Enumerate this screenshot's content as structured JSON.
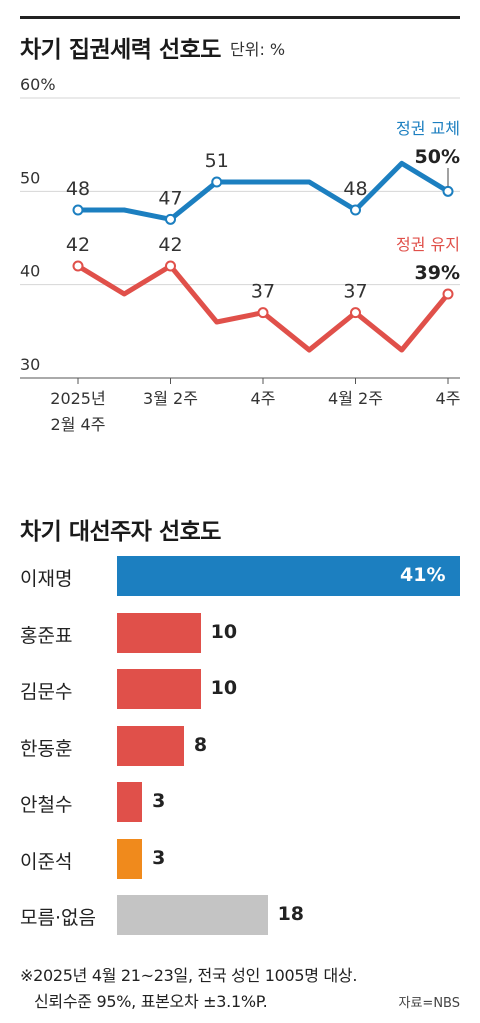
{
  "chart_data": [
    {
      "type": "line",
      "title": "차기 집권세력 선호도",
      "unit": "단위: %",
      "ylim": [
        30,
        60
      ],
      "y_ticks": [
        "60%",
        "50",
        "40",
        "30"
      ],
      "x_tick_labels": [
        "2025년\n2월 4주",
        "3월 2주",
        "4주",
        "4월 2주",
        "4주"
      ],
      "series": [
        {
          "name": "정권 교체",
          "color": "#1c7fc0",
          "values": [
            48,
            48,
            47,
            51,
            51,
            51,
            48,
            53,
            50
          ],
          "labels": [
            "48",
            "",
            "47",
            "51",
            "",
            "",
            "48",
            "",
            "50"
          ],
          "last_label": "50%"
        },
        {
          "name": "정권 유지",
          "color": "#e0504a",
          "values": [
            42,
            39,
            42,
            36,
            37,
            33,
            37,
            33,
            39
          ],
          "labels": [
            "42",
            "",
            "42",
            "",
            "37",
            "",
            "37",
            "",
            "39"
          ],
          "last_label": "39%"
        }
      ]
    },
    {
      "type": "bar",
      "title": "차기 대선주자 선호도",
      "categories": [
        "이재명",
        "홍준표",
        "김문수",
        "한동훈",
        "안철수",
        "이준석",
        "모름·없음"
      ],
      "values": [
        41,
        10,
        10,
        8,
        3,
        3,
        18
      ],
      "value_labels": [
        "41%",
        "10",
        "10",
        "8",
        "3",
        "3",
        "18"
      ],
      "colors": [
        "#1c7fc0",
        "#e0504a",
        "#e0504a",
        "#e0504a",
        "#e0504a",
        "#f08a1c",
        "#c4c4c4"
      ],
      "xlim": [
        0,
        41
      ]
    }
  ],
  "notes": [
    "※2025년 4월 21~23일, 전국 성인 1005명 대상.",
    "신뢰수준 95%, 표본오차 ±3.1%P."
  ],
  "source": "자료=NBS"
}
